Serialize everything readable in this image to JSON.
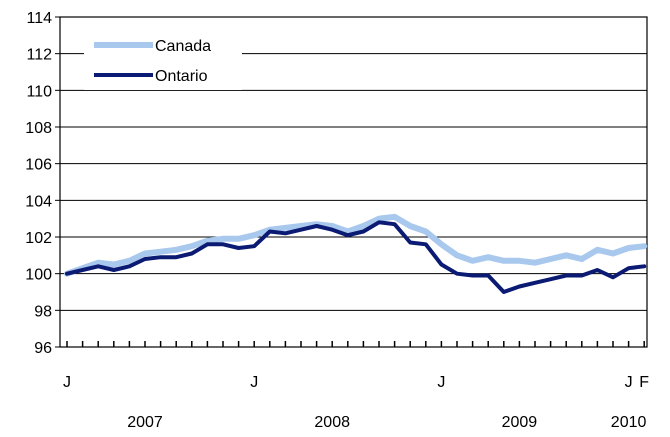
{
  "chart_data": {
    "type": "line",
    "title": "",
    "xlabel": "",
    "ylabel": "",
    "x": [
      "2007-01",
      "2007-02",
      "2007-03",
      "2007-04",
      "2007-05",
      "2007-06",
      "2007-07",
      "2007-08",
      "2007-09",
      "2007-10",
      "2007-11",
      "2007-12",
      "2008-01",
      "2008-02",
      "2008-03",
      "2008-04",
      "2008-05",
      "2008-06",
      "2008-07",
      "2008-08",
      "2008-09",
      "2008-10",
      "2008-11",
      "2008-12",
      "2009-01",
      "2009-02",
      "2009-03",
      "2009-04",
      "2009-05",
      "2009-06",
      "2009-07",
      "2009-08",
      "2009-09",
      "2009-10",
      "2009-11",
      "2009-12",
      "2010-01",
      "2010-02"
    ],
    "ylim": [
      96,
      114
    ],
    "yticks": [
      96,
      98,
      100,
      102,
      104,
      106,
      108,
      110,
      112,
      114
    ],
    "xtick_labels": [
      {
        "x": "2007-01",
        "label": "J"
      },
      {
        "x": "2008-01",
        "label": "J"
      },
      {
        "x": "2009-01",
        "label": "J"
      },
      {
        "x": "2010-01",
        "label": "J"
      },
      {
        "x": "2010-02",
        "label": "F"
      }
    ],
    "year_labels": [
      {
        "x": "2007-06",
        "label": "2007"
      },
      {
        "x": "2008-06",
        "label": "2008"
      },
      {
        "x": "2009-06",
        "label": "2009"
      },
      {
        "x": "2010-01",
        "label": "2010"
      }
    ],
    "grid": "horizontal",
    "legend_position": "top-left",
    "series": [
      {
        "name": "Canada",
        "color": "#a9c8ee",
        "values": [
          100.0,
          100.3,
          100.6,
          100.5,
          100.7,
          101.1,
          101.2,
          101.3,
          101.5,
          101.8,
          101.9,
          101.9,
          102.1,
          102.4,
          102.5,
          102.6,
          102.7,
          102.6,
          102.3,
          102.6,
          103.0,
          103.1,
          102.6,
          102.3,
          101.6,
          101.0,
          100.7,
          100.9,
          100.7,
          100.7,
          100.6,
          100.8,
          101.0,
          100.8,
          101.3,
          101.1,
          101.4,
          101.5
        ]
      },
      {
        "name": "Ontario",
        "color": "#0b1a73",
        "values": [
          100.0,
          100.2,
          100.4,
          100.2,
          100.4,
          100.8,
          100.9,
          100.9,
          101.1,
          101.6,
          101.6,
          101.4,
          101.5,
          102.3,
          102.2,
          102.4,
          102.6,
          102.4,
          102.1,
          102.3,
          102.8,
          102.7,
          101.7,
          101.6,
          100.5,
          100.0,
          99.9,
          99.9,
          99.0,
          99.3,
          99.5,
          99.7,
          99.9,
          99.9,
          100.2,
          99.8,
          100.3,
          100.4
        ]
      }
    ]
  }
}
